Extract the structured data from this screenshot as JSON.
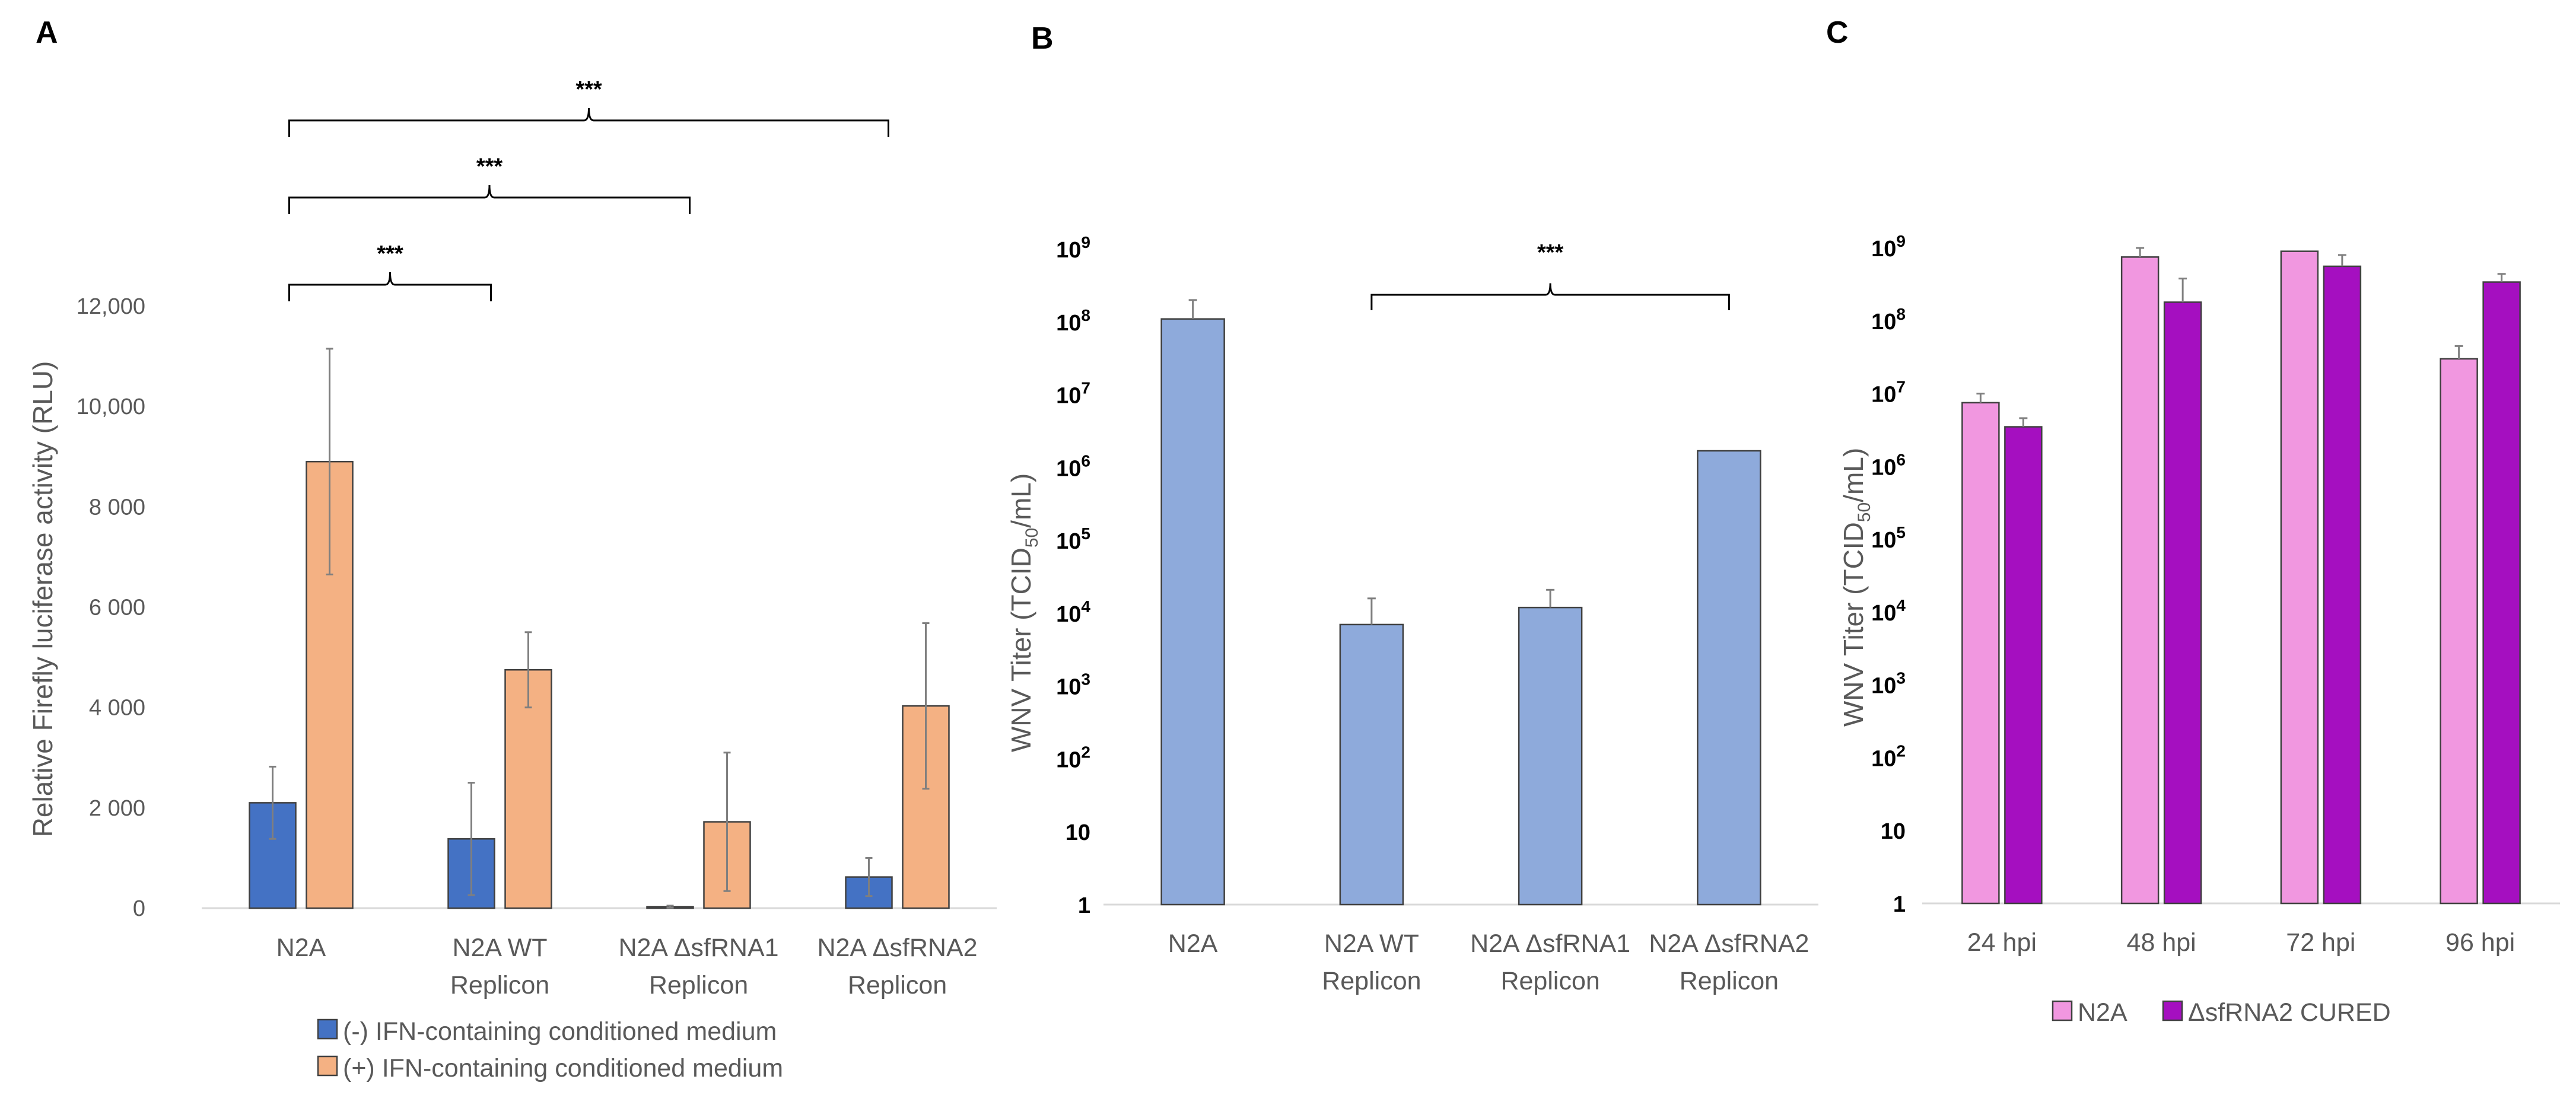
{
  "chart_data": [
    {
      "panel": "A",
      "type": "bar",
      "ylabel": "Relative Firefly luciferase activity (RLU)",
      "ylim": [
        0,
        12000
      ],
      "ytick_labels": [
        "0",
        "2 000",
        "4 000",
        "6 000",
        "8 000",
        "10,000",
        "12,000"
      ],
      "categories": [
        [
          "N2A"
        ],
        [
          "N2A WT",
          "Replicon"
        ],
        [
          "N2A ΔsfRNA1",
          "Replicon"
        ],
        [
          "N2A ΔsfRNA2",
          "Replicon"
        ]
      ],
      "series": [
        {
          "name": "(-) IFN-containing conditioned medium",
          "color": "#4472c4",
          "values": [
            2100,
            1380,
            30,
            620
          ],
          "errors": [
            720,
            1120,
            20,
            380
          ]
        },
        {
          "name": "(+) IFN-containing conditioned medium",
          "color": "#f4b183",
          "values": [
            8900,
            4750,
            1720,
            4030
          ],
          "errors": [
            2250,
            750,
            1380,
            1650
          ]
        }
      ],
      "significance": [
        {
          "label": "***",
          "from": 0,
          "to": 1
        },
        {
          "label": "***",
          "from": 0,
          "to": 2
        },
        {
          "label": "***",
          "from": 0,
          "to": 3
        }
      ]
    },
    {
      "panel": "B",
      "type": "bar",
      "ylabel": "WNV Titer (TCID50/mL)",
      "ylabel_parts": {
        "main": "WNV Titer (TCID",
        "sub": "50",
        "tail": "/mL)"
      },
      "yscale": "log",
      "ylim": [
        1,
        1000000000
      ],
      "ytick_labels": [
        {
          "base": "1",
          "exp": ""
        },
        {
          "base": "10",
          "exp": ""
        },
        {
          "base": "10",
          "exp": "2"
        },
        {
          "base": "10",
          "exp": "3"
        },
        {
          "base": "10",
          "exp": "4"
        },
        {
          "base": "10",
          "exp": "5"
        },
        {
          "base": "10",
          "exp": "6"
        },
        {
          "base": "10",
          "exp": "7"
        },
        {
          "base": "10",
          "exp": "8"
        },
        {
          "base": "10",
          "exp": "9"
        }
      ],
      "categories": [
        [
          "N2A"
        ],
        [
          "N2A WT",
          "Replicon"
        ],
        [
          "N2A ΔsfRNA1",
          "Replicon"
        ],
        [
          "N2A ΔsfRNA2",
          "Replicon"
        ]
      ],
      "series": [
        {
          "name": "WNV titer",
          "color": "#8eaadb",
          "values": [
            110000000,
            7000,
            12000,
            1700000
          ],
          "errors_upper": [
            200000000,
            16000,
            21000,
            null
          ]
        }
      ],
      "significance": [
        {
          "label": "***",
          "from": 1,
          "to": 3
        }
      ]
    },
    {
      "panel": "C",
      "type": "bar",
      "ylabel": "WNV Titer (TCID50/mL)",
      "ylabel_parts": {
        "main": "WNV Titer (TCID",
        "sub": "50",
        "tail": "/mL)"
      },
      "yscale": "log",
      "ylim": [
        1,
        1000000000
      ],
      "ytick_labels": [
        {
          "base": "1",
          "exp": ""
        },
        {
          "base": "10",
          "exp": ""
        },
        {
          "base": "10",
          "exp": "2"
        },
        {
          "base": "10",
          "exp": "3"
        },
        {
          "base": "10",
          "exp": "4"
        },
        {
          "base": "10",
          "exp": "5"
        },
        {
          "base": "10",
          "exp": "6"
        },
        {
          "base": "10",
          "exp": "7"
        },
        {
          "base": "10",
          "exp": "8"
        },
        {
          "base": "10",
          "exp": "9"
        }
      ],
      "categories": [
        "24 hpi",
        "48 hpi",
        "72 hpi",
        "96 hpi"
      ],
      "series": [
        {
          "name": "N2A",
          "color": "#f197e0",
          "values": [
            7500000,
            750000000,
            900000000,
            30000000
          ],
          "errors_upper": [
            10000000,
            1000000000,
            null,
            45000000
          ]
        },
        {
          "name": "ΔsfRNA2 CURED",
          "color": "#a50fc0",
          "values": [
            3500000,
            180000000,
            560000000,
            340000000
          ],
          "errors_upper": [
            4600000,
            380000000,
            800000000,
            440000000
          ]
        }
      ]
    }
  ]
}
